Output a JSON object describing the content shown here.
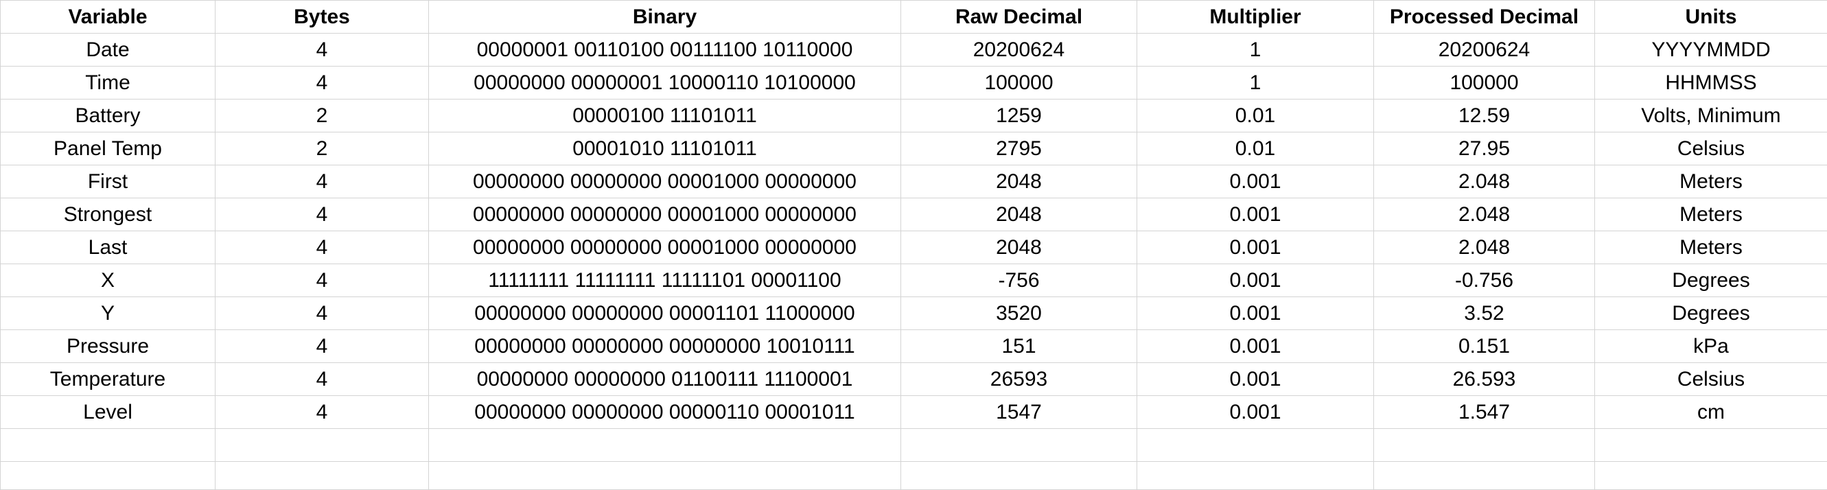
{
  "table": {
    "headers": [
      "Variable",
      "Bytes",
      "Binary",
      "Raw Decimal",
      "Multiplier",
      "Processed Decimal",
      "Units"
    ],
    "rows": [
      [
        "Date",
        "4",
        "00000001 00110100 00111100 10110000",
        "20200624",
        "1",
        "20200624",
        "YYYYMMDD"
      ],
      [
        "Time",
        "4",
        "00000000 00000001 10000110 10100000",
        "100000",
        "1",
        "100000",
        "HHMMSS"
      ],
      [
        "Battery",
        "2",
        "00000100 11101011",
        "1259",
        "0.01",
        "12.59",
        "Volts, Minimum"
      ],
      [
        "Panel Temp",
        "2",
        "00001010 11101011",
        "2795",
        "0.01",
        "27.95",
        "Celsius"
      ],
      [
        "First",
        "4",
        "00000000 00000000 00001000 00000000",
        "2048",
        "0.001",
        "2.048",
        "Meters"
      ],
      [
        "Strongest",
        "4",
        "00000000 00000000 00001000 00000000",
        "2048",
        "0.001",
        "2.048",
        "Meters"
      ],
      [
        "Last",
        "4",
        "00000000 00000000 00001000 00000000",
        "2048",
        "0.001",
        "2.048",
        "Meters"
      ],
      [
        "X",
        "4",
        "11111111 11111111 11111101 00001100",
        "-756",
        "0.001",
        "-0.756",
        "Degrees"
      ],
      [
        "Y",
        "4",
        "00000000 00000000 00001101 11000000",
        "3520",
        "0.001",
        "3.52",
        "Degrees"
      ],
      [
        "Pressure",
        "4",
        "00000000 00000000 00000000 10010111",
        "151",
        "0.001",
        "0.151",
        "kPa"
      ],
      [
        "Temperature",
        "4",
        "00000000 00000000 01100111 11100001",
        "26593",
        "0.001",
        "26.593",
        "Celsius"
      ],
      [
        "Level",
        "4",
        "00000000 00000000 00000110 00001011",
        "1547",
        "0.001",
        "1.547",
        "cm"
      ]
    ]
  }
}
